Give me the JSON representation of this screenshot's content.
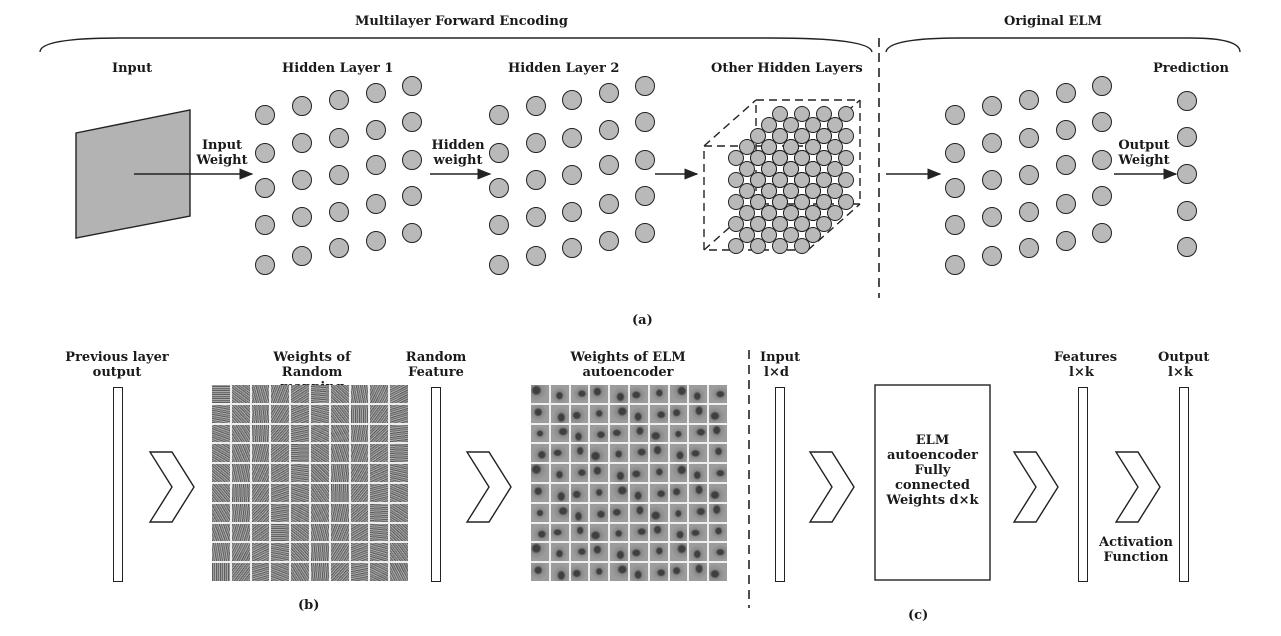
{
  "panel_a": {
    "section_encoding": "Multilayer Forward Encoding",
    "section_elm": "Original ELM",
    "col_input": "Input",
    "col_hidden1": "Hidden Layer 1",
    "col_hidden2": "Hidden Layer 2",
    "col_other": "Other Hidden Layers",
    "col_prediction": "Prediction",
    "arrow_input_weight": "Input Weight",
    "arrow_hidden_weight": "Hidden weight",
    "arrow_output_weight": "Output Weight",
    "caption": "(a)"
  },
  "panel_b": {
    "prev_output": "Previous layer output",
    "weights_random": "Weights of Random mapping",
    "random_feature": "Random Feature",
    "weights_ae": "Weights of ELM autoencoder",
    "caption": "(b)"
  },
  "panel_c": {
    "input_label": "Input",
    "input_dim": "l×d",
    "box_text": "ELM autoencoder Fully connected Weights d×k",
    "features_label": "Features",
    "features_dim": "l×k",
    "output_label": "Output",
    "output_dim": "l×k",
    "activation": "Activation Function",
    "caption": "(c)"
  },
  "colors": {
    "node_fill": "#b9b9b9",
    "stroke": "#222222",
    "input_plane": "#b3b3b3"
  }
}
